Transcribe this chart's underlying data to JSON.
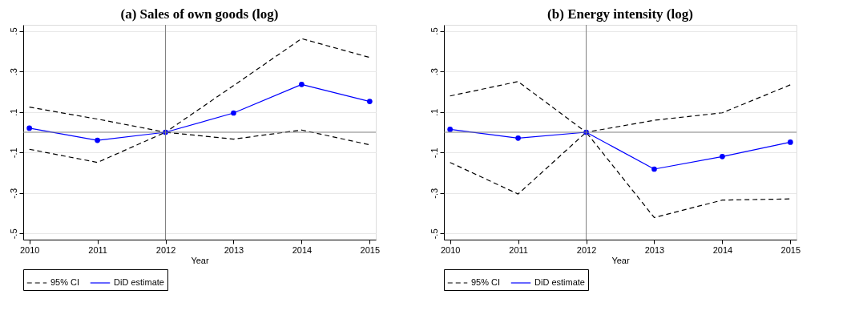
{
  "chart_data": [
    {
      "type": "line",
      "title": "(a) Sales of own goods (log)",
      "xlabel": "Year",
      "x": [
        2010,
        2011,
        2012,
        2013,
        2014,
        2015
      ],
      "xlim": [
        2009.91,
        2015.09
      ],
      "xticks": [
        2010,
        2011,
        2012,
        2013,
        2014,
        2015
      ],
      "ylim": [
        -0.53,
        0.53
      ],
      "yticks": [
        {
          "value": -0.5,
          "label": "-.5"
        },
        {
          "value": -0.3,
          "label": "-.3"
        },
        {
          "value": -0.1,
          "label": "-.1"
        },
        {
          "value": 0.1,
          "label": ".1"
        },
        {
          "value": 0.3,
          "label": ".3"
        },
        {
          "value": 0.5,
          "label": ".5"
        }
      ],
      "grid": "y",
      "legend": "bottom",
      "ref_lines": [
        {
          "axis": "y",
          "value": 0,
          "color": "#808080"
        },
        {
          "axis": "x",
          "value": 2012,
          "color": "#808080"
        }
      ],
      "series": [
        {
          "name": "95% CI",
          "color": "#000000",
          "line_style": "dashed",
          "marker": "none",
          "values": [
            -0.084,
            -0.149,
            0,
            -0.034,
            0.011,
            -0.062
          ]
        },
        {
          "color": "#000000",
          "line_style": "dashed",
          "marker": "none",
          "values": [
            0.124,
            0.065,
            0,
            0.23,
            0.462,
            0.369
          ]
        },
        {
          "name": "DiD estimate",
          "color": "#0000ff",
          "line_style": "solid",
          "marker": "circle",
          "values": [
            0.02,
            -0.04,
            0,
            0.095,
            0.236,
            0.152
          ]
        }
      ]
    },
    {
      "type": "line",
      "title": "(b) Energy intensity (log)",
      "xlabel": "Year",
      "x": [
        2010,
        2011,
        2012,
        2013,
        2014,
        2015
      ],
      "xlim": [
        2009.91,
        2015.09
      ],
      "xticks": [
        2010,
        2011,
        2012,
        2013,
        2014,
        2015
      ],
      "ylim": [
        -0.53,
        0.53
      ],
      "yticks": [
        {
          "value": -0.5,
          "label": "-.5"
        },
        {
          "value": -0.3,
          "label": "-.3"
        },
        {
          "value": -0.1,
          "label": "-.1"
        },
        {
          "value": 0.1,
          "label": ".1"
        },
        {
          "value": 0.3,
          "label": ".3"
        },
        {
          "value": 0.5,
          "label": ".5"
        }
      ],
      "grid": "y",
      "legend": "bottom",
      "ref_lines": [
        {
          "axis": "y",
          "value": 0,
          "color": "#808080"
        },
        {
          "axis": "x",
          "value": 2012,
          "color": "#808080"
        }
      ],
      "series": [
        {
          "name": "95% CI",
          "color": "#000000",
          "line_style": "dashed",
          "marker": "none",
          "values": [
            -0.149,
            -0.305,
            0,
            -0.421,
            -0.335,
            -0.329
          ]
        },
        {
          "color": "#000000",
          "line_style": "dashed",
          "marker": "none",
          "values": [
            0.179,
            0.25,
            0,
            0.059,
            0.096,
            0.234
          ]
        },
        {
          "name": "DiD estimate",
          "color": "#0000ff",
          "line_style": "solid",
          "marker": "circle",
          "values": [
            0.014,
            -0.029,
            0,
            -0.182,
            -0.12,
            -0.049
          ]
        }
      ]
    }
  ]
}
